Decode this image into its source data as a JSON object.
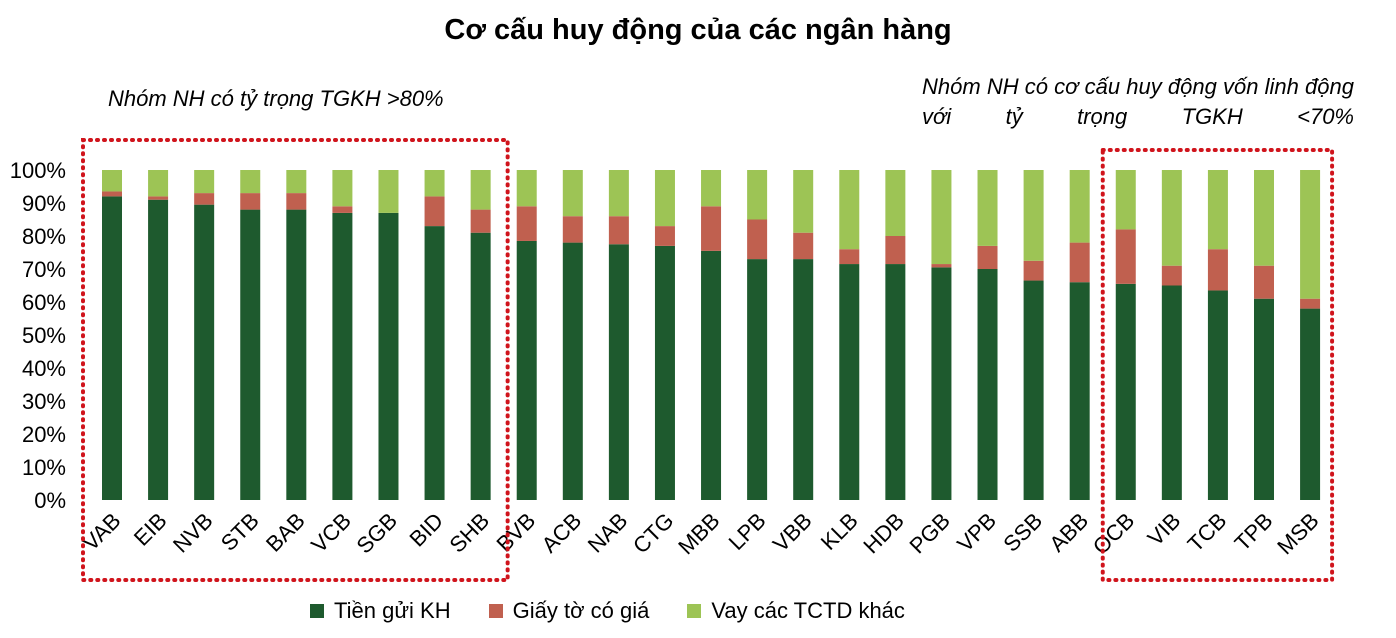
{
  "chart_data": {
    "type": "bar",
    "stacked": true,
    "title": "Cơ cấu huy động của các ngân hàng",
    "xlabel": "",
    "ylabel": "",
    "ylim": [
      0,
      100
    ],
    "yticks": [
      "0%",
      "10%",
      "20%",
      "30%",
      "40%",
      "50%",
      "60%",
      "70%",
      "80%",
      "90%",
      "100%"
    ],
    "grid": false,
    "legend_position": "bottom",
    "categories": [
      "VAB",
      "EIB",
      "NVB",
      "STB",
      "BAB",
      "VCB",
      "SGB",
      "BID",
      "SHB",
      "BVB",
      "ACB",
      "NAB",
      "CTG",
      "MBB",
      "LPB",
      "VBB",
      "KLB",
      "HDB",
      "PGB",
      "VPB",
      "SSB",
      "ABB",
      "OCB",
      "VIB",
      "TCB",
      "TPB",
      "MSB"
    ],
    "series": [
      {
        "name": "Tiền gửi KH",
        "color": "#1e5a2e",
        "values": [
          92,
          91,
          89.5,
          88,
          88,
          87,
          87,
          83,
          81,
          78.5,
          78,
          77.5,
          77,
          75.5,
          73,
          73,
          71.5,
          71.5,
          70.5,
          70,
          66.5,
          66,
          65.5,
          65,
          63.5,
          61,
          58
        ]
      },
      {
        "name": "Giấy tờ có giá",
        "color": "#c0604f",
        "values": [
          1.5,
          1,
          3.5,
          5,
          5,
          2,
          0,
          9,
          7,
          10.5,
          8,
          8.5,
          6,
          13.5,
          12,
          8,
          4.5,
          8.5,
          1,
          7,
          6,
          12,
          16.5,
          6,
          12.5,
          10,
          3
        ]
      },
      {
        "name": "Vay các TCTD khác",
        "color": "#9dc455",
        "values": [
          6.5,
          8,
          7,
          7,
          7,
          11,
          13,
          8,
          12,
          11,
          14,
          14,
          17,
          11,
          15,
          19,
          24,
          20,
          28.5,
          23,
          27.5,
          22,
          18,
          29,
          24,
          29,
          39
        ]
      }
    ],
    "annotations": [
      {
        "text": "Nhóm NH có tỷ trọng TGKH >80%",
        "group": [
          "VAB",
          "SHB"
        ]
      },
      {
        "text": "Nhóm NH có cơ cấu huy động vốn linh động với tỷ trọng TGKH <70%",
        "group": [
          "OCB",
          "MSB"
        ]
      }
    ],
    "highlight_color": "#d0141c"
  }
}
